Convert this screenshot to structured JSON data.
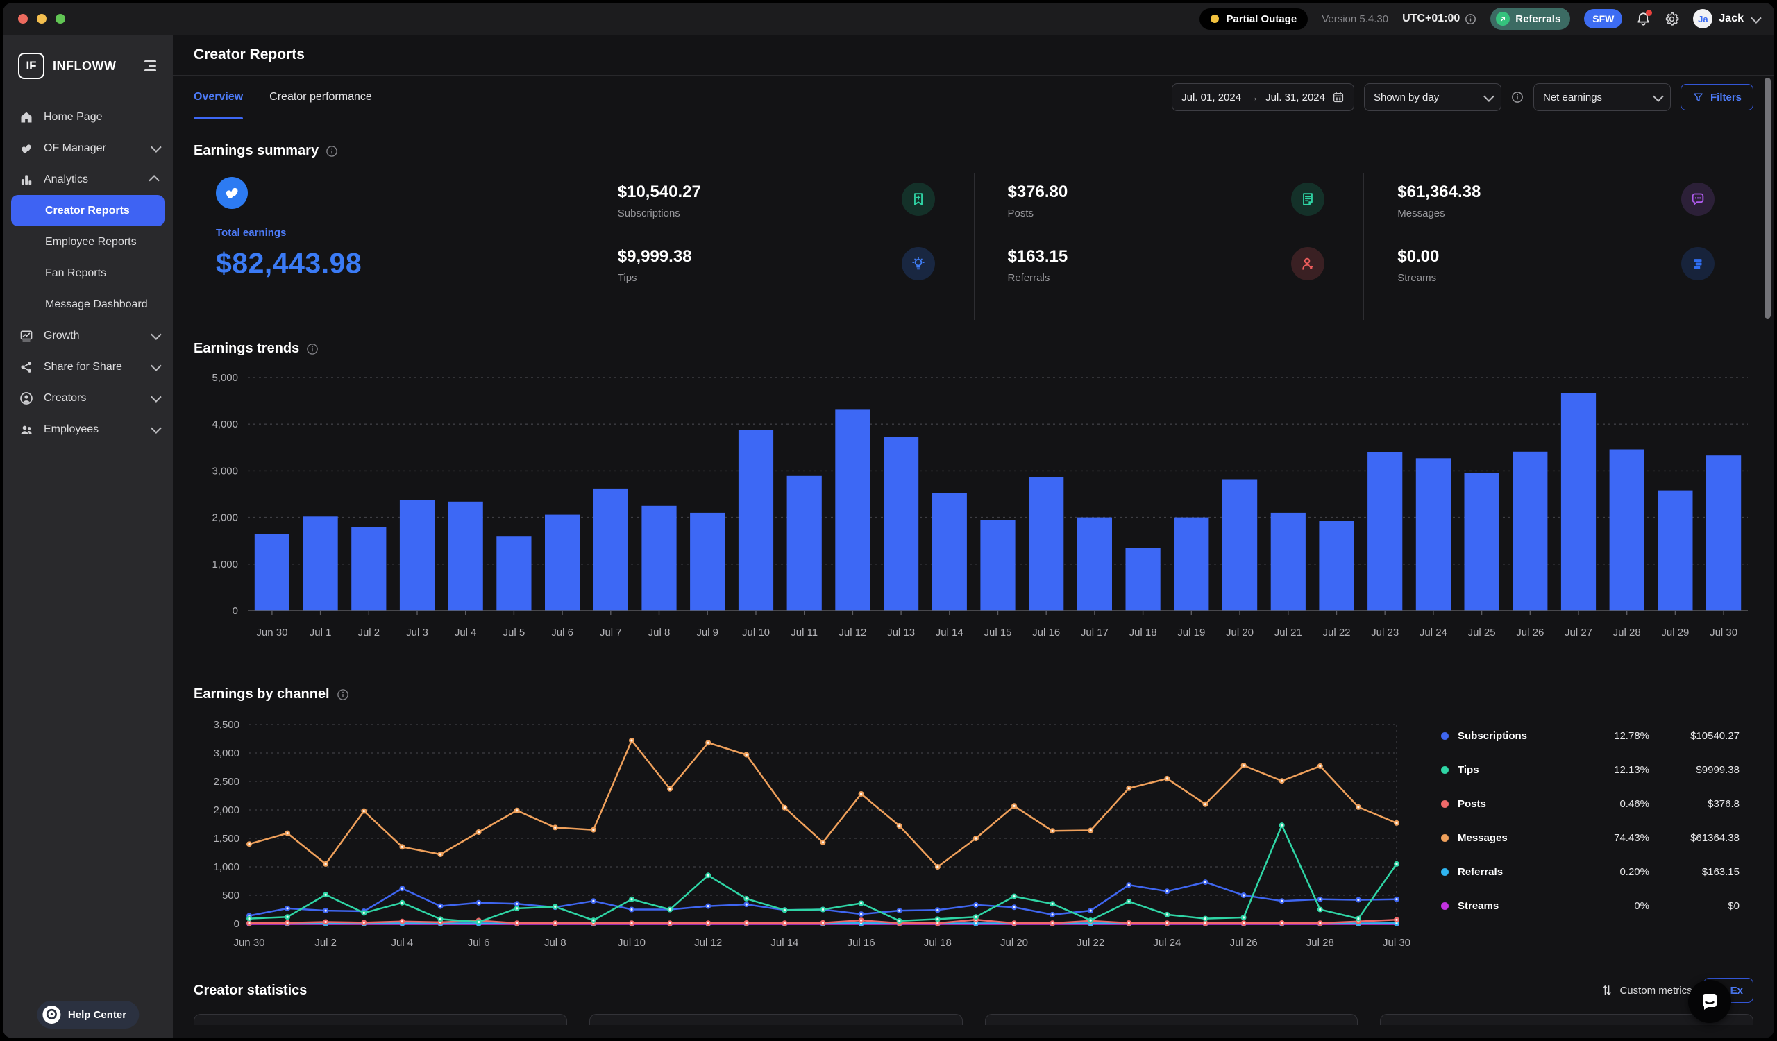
{
  "topbar": {
    "status": "Partial Outage",
    "version": "Version 5.4.30",
    "timezone": "UTC+01:00",
    "referrals_label": "Referrals",
    "sfw_label": "SFW",
    "user_initials": "Ja",
    "user_name": "Jack"
  },
  "sidebar": {
    "brand": "INFLOWW",
    "brand_monogram": "IF",
    "help_center": "Help Center",
    "items": [
      {
        "label": "Home Page",
        "icon": "home-icon"
      },
      {
        "label": "OF Manager",
        "icon": "of-glyph-icon",
        "chevron": "down"
      },
      {
        "label": "Analytics",
        "icon": "analytics-icon",
        "chevron": "up",
        "children": [
          {
            "label": "Creator Reports",
            "active": true
          },
          {
            "label": "Employee Reports"
          },
          {
            "label": "Fan Reports"
          },
          {
            "label": "Message Dashboard"
          }
        ]
      },
      {
        "label": "Growth",
        "icon": "growth-icon",
        "chevron": "down"
      },
      {
        "label": "Share for Share",
        "icon": "share-icon",
        "chevron": "down"
      },
      {
        "label": "Creators",
        "icon": "creator-icon",
        "chevron": "down"
      },
      {
        "label": "Employees",
        "icon": "employees-icon",
        "chevron": "down"
      }
    ]
  },
  "header": {
    "title": "Creator Reports"
  },
  "tabs": [
    {
      "label": "Overview",
      "active": true
    },
    {
      "label": "Creator performance",
      "active": false
    }
  ],
  "filters": {
    "date_from": "Jul. 01, 2024",
    "date_to": "Jul. 31, 2024",
    "date_separator": "→",
    "shown_by": "Shown by day",
    "metric": "Net earnings",
    "filters_label": "Filters"
  },
  "summary": {
    "title": "Earnings summary",
    "total": {
      "label": "Total earnings",
      "value": "$82,443.98"
    },
    "columns": [
      [
        {
          "value": "$10,540.27",
          "label": "Subscriptions",
          "icon": "bookmark-plus-icon",
          "fg": "#2fd5a5",
          "bg": "#143129"
        },
        {
          "value": "$9,999.38",
          "label": "Tips",
          "icon": "lightbulb-icon",
          "fg": "#3f7df5",
          "bg": "#192741"
        }
      ],
      [
        {
          "value": "$376.80",
          "label": "Posts",
          "icon": "note-icon",
          "fg": "#2fd5a5",
          "bg": "#143129"
        },
        {
          "value": "$163.15",
          "label": "Referrals",
          "icon": "person-star-icon",
          "fg": "#ef5d5d",
          "bg": "#3a2023"
        }
      ],
      [
        {
          "value": "$61,364.38",
          "label": "Messages",
          "icon": "chat-icon",
          "fg": "#b05cf0",
          "bg": "#2c2038"
        },
        {
          "value": "$0.00",
          "label": "Streams",
          "icon": "streams-icon",
          "fg": "#2f6df0",
          "bg": "#17233b"
        }
      ]
    ]
  },
  "sections": {
    "trends_title": "Earnings trends",
    "channel_title": "Earnings by channel",
    "statistics_title": "Creator statistics",
    "custom_metrics": "Custom metrics",
    "export_label": "Ex"
  },
  "chart_data": [
    {
      "type": "bar",
      "title": "Earnings trends",
      "bar_color": "#3d68f5",
      "ylim": [
        0,
        5000
      ],
      "yticks": [
        "5,000",
        "4,000",
        "3,000",
        "2,000",
        "1,000",
        "0"
      ],
      "grid": true,
      "categories": [
        "Jun 30",
        "Jul 1",
        "Jul 2",
        "Jul 3",
        "Jul 4",
        "Jul 5",
        "Jul 6",
        "Jul 7",
        "Jul 8",
        "Jul 9",
        "Jul 10",
        "Jul 11",
        "Jul 12",
        "Jul 13",
        "Jul 14",
        "Jul 15",
        "Jul 16",
        "Jul 17",
        "Jul 18",
        "Jul 19",
        "Jul 20",
        "Jul 21",
        "Jul 22",
        "Jul 23",
        "Jul 24",
        "Jul 25",
        "Jul 26",
        "Jul 27",
        "Jul 28",
        "Jul 29",
        "Jul 30"
      ],
      "values": [
        1650,
        2020,
        1800,
        2380,
        2340,
        1590,
        2060,
        2620,
        2250,
        2100,
        3880,
        2890,
        4310,
        3720,
        2530,
        1950,
        2860,
        2000,
        1340,
        2000,
        2820,
        2100,
        1930,
        3400,
        3270,
        2950,
        3410,
        4660,
        3460,
        2580,
        3330
      ]
    },
    {
      "type": "line",
      "title": "Earnings by channel",
      "ylim": [
        0,
        3500
      ],
      "yticks": [
        "3,500",
        "3,000",
        "2,500",
        "2,000",
        "1,500",
        "1,000",
        "500",
        "0"
      ],
      "grid": true,
      "xtick_every": 2,
      "categories": [
        "Jun 30",
        "Jul 1",
        "Jul 2",
        "Jul 3",
        "Jul 4",
        "Jul 5",
        "Jul 6",
        "Jul 7",
        "Jul 8",
        "Jul 9",
        "Jul 10",
        "Jul 11",
        "Jul 12",
        "Jul 13",
        "Jul 14",
        "Jul 15",
        "Jul 16",
        "Jul 17",
        "Jul 18",
        "Jul 19",
        "Jul 20",
        "Jul 21",
        "Jul 22",
        "Jul 23",
        "Jul 24",
        "Jul 25",
        "Jul 26",
        "Jul 27",
        "Jul 28",
        "Jul 29",
        "Jul 30"
      ],
      "series": [
        {
          "name": "Streams",
          "color": "#c332e0",
          "width": 3.5,
          "values": [
            0,
            0,
            0,
            0,
            0,
            0,
            0,
            0,
            0,
            0,
            0,
            0,
            0,
            0,
            0,
            0,
            0,
            0,
            0,
            0,
            0,
            0,
            0,
            0,
            0,
            0,
            0,
            0,
            0,
            0,
            0
          ]
        },
        {
          "name": "Referrals",
          "color": "#2fb5f0",
          "width": 2.5,
          "values": [
            8,
            5,
            6,
            5,
            7,
            5,
            6,
            5,
            6,
            5,
            7,
            5,
            6,
            5,
            6,
            5,
            8,
            5,
            6,
            5,
            7,
            5,
            6,
            8,
            6,
            5,
            7,
            5,
            6,
            5,
            8
          ]
        },
        {
          "name": "Posts",
          "color": "#f06a6a",
          "width": 2.5,
          "values": [
            10,
            15,
            30,
            20,
            40,
            25,
            55,
            10,
            8,
            12,
            10,
            8,
            10,
            12,
            10,
            15,
            60,
            10,
            8,
            70,
            10,
            8,
            50,
            12,
            10,
            8,
            10,
            12,
            10,
            40,
            70
          ]
        },
        {
          "name": "Subscriptions",
          "color": "#3f66f0",
          "width": 2.5,
          "values": [
            140,
            270,
            230,
            220,
            620,
            310,
            370,
            350,
            290,
            400,
            250,
            250,
            310,
            340,
            240,
            250,
            170,
            230,
            240,
            330,
            290,
            160,
            230,
            680,
            570,
            730,
            500,
            400,
            430,
            420,
            430
          ]
        },
        {
          "name": "Tips",
          "color": "#2fd5a5",
          "width": 2.5,
          "values": [
            90,
            120,
            510,
            190,
            370,
            80,
            30,
            270,
            300,
            60,
            430,
            250,
            850,
            440,
            240,
            250,
            360,
            50,
            80,
            120,
            480,
            350,
            60,
            390,
            160,
            90,
            110,
            1730,
            250,
            90,
            1050
          ]
        },
        {
          "name": "Messages",
          "color": "#efa05b",
          "width": 2.5,
          "values": [
            1400,
            1590,
            1050,
            1980,
            1350,
            1220,
            1610,
            1990,
            1690,
            1650,
            3220,
            2370,
            3180,
            2970,
            2040,
            1430,
            2280,
            1720,
            1000,
            1500,
            2070,
            1630,
            1640,
            2380,
            2550,
            2100,
            2780,
            2510,
            2770,
            2050,
            1770
          ]
        }
      ],
      "legend_position": "right",
      "legend": [
        {
          "name": "Subscriptions",
          "color": "#3f66f0",
          "pct": "12.78%",
          "amount": "$10540.27"
        },
        {
          "name": "Tips",
          "color": "#2fd5a5",
          "pct": "12.13%",
          "amount": "$9999.38"
        },
        {
          "name": "Posts",
          "color": "#f06a6a",
          "pct": "0.46%",
          "amount": "$376.8"
        },
        {
          "name": "Messages",
          "color": "#efa05b",
          "pct": "74.43%",
          "amount": "$61364.38"
        },
        {
          "name": "Referrals",
          "color": "#2fb5f0",
          "pct": "0.20%",
          "amount": "$163.15"
        },
        {
          "name": "Streams",
          "color": "#c332e0",
          "pct": "0%",
          "amount": "$0"
        }
      ]
    }
  ]
}
